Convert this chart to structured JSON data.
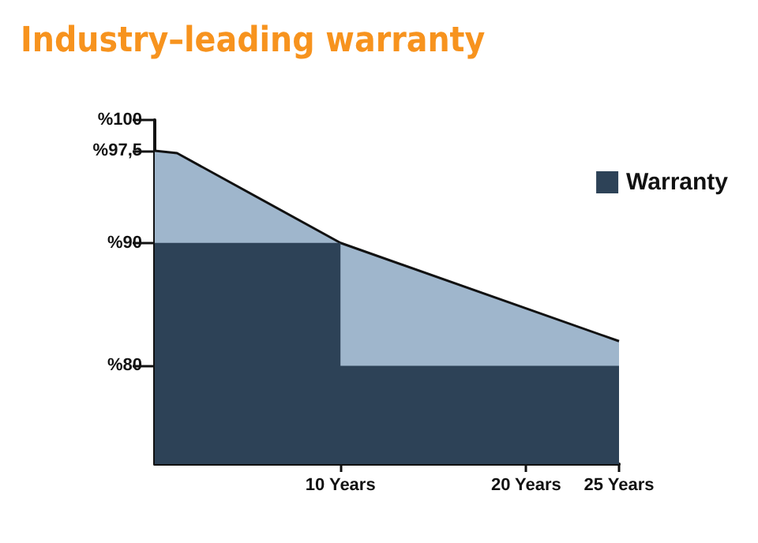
{
  "chart_data": {
    "type": "area",
    "title": "Industry–leading warranty",
    "xlim": [
      0,
      25
    ],
    "xticks": [
      {
        "value": 10,
        "label": "10 Years"
      },
      {
        "value": 20,
        "label": "20 Years"
      },
      {
        "value": 25,
        "label": "25 Years"
      }
    ],
    "ylim": [
      72,
      100
    ],
    "yticks": [
      {
        "value": 80,
        "label": "%80"
      },
      {
        "value": 90,
        "label": "%90"
      },
      {
        "value": 97.5,
        "label": "%97,5"
      },
      {
        "value": 100,
        "label": "%100"
      }
    ],
    "series": [
      {
        "color": "#9fb6cc",
        "x": [
          0,
          1.2,
          10,
          25
        ],
        "values": [
          97.5,
          97.3,
          90,
          82
        ]
      },
      {
        "name": "Warranty",
        "color": "#2d4257",
        "x": [
          0,
          10,
          10,
          25
        ],
        "values": [
          90,
          90,
          80,
          80
        ]
      }
    ],
    "grid": false,
    "legend": "right",
    "marker": "none"
  }
}
